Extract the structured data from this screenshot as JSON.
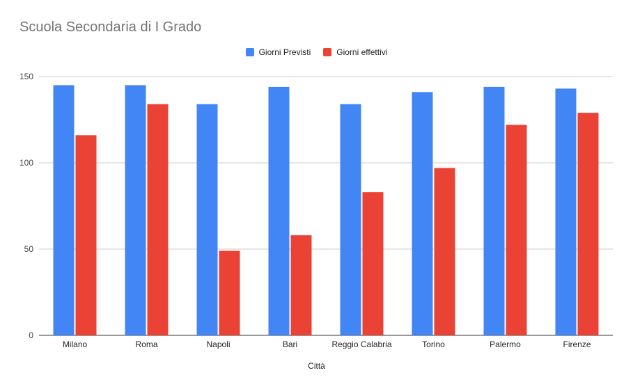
{
  "chart_data": {
    "type": "bar",
    "title": "Scuola Secondaria di I Grado",
    "xlabel": "Città",
    "ylabel": "",
    "ylim": [
      0,
      150
    ],
    "yticks": [
      0,
      50,
      100,
      150
    ],
    "grid": true,
    "legend_position": "top",
    "categories": [
      "Milano",
      "Roma",
      "Napoli",
      "Bari",
      "Reggio Calabria",
      "Torino",
      "Palermo",
      "Firenze"
    ],
    "series": [
      {
        "name": "Giorni Previsti",
        "color": "#4285F4",
        "values": [
          145,
          145,
          134,
          144,
          134,
          141,
          144,
          143
        ]
      },
      {
        "name": "Giorni effettivi",
        "color": "#EA4335",
        "values": [
          116,
          134,
          49,
          58,
          83,
          97,
          122,
          129
        ]
      }
    ]
  }
}
